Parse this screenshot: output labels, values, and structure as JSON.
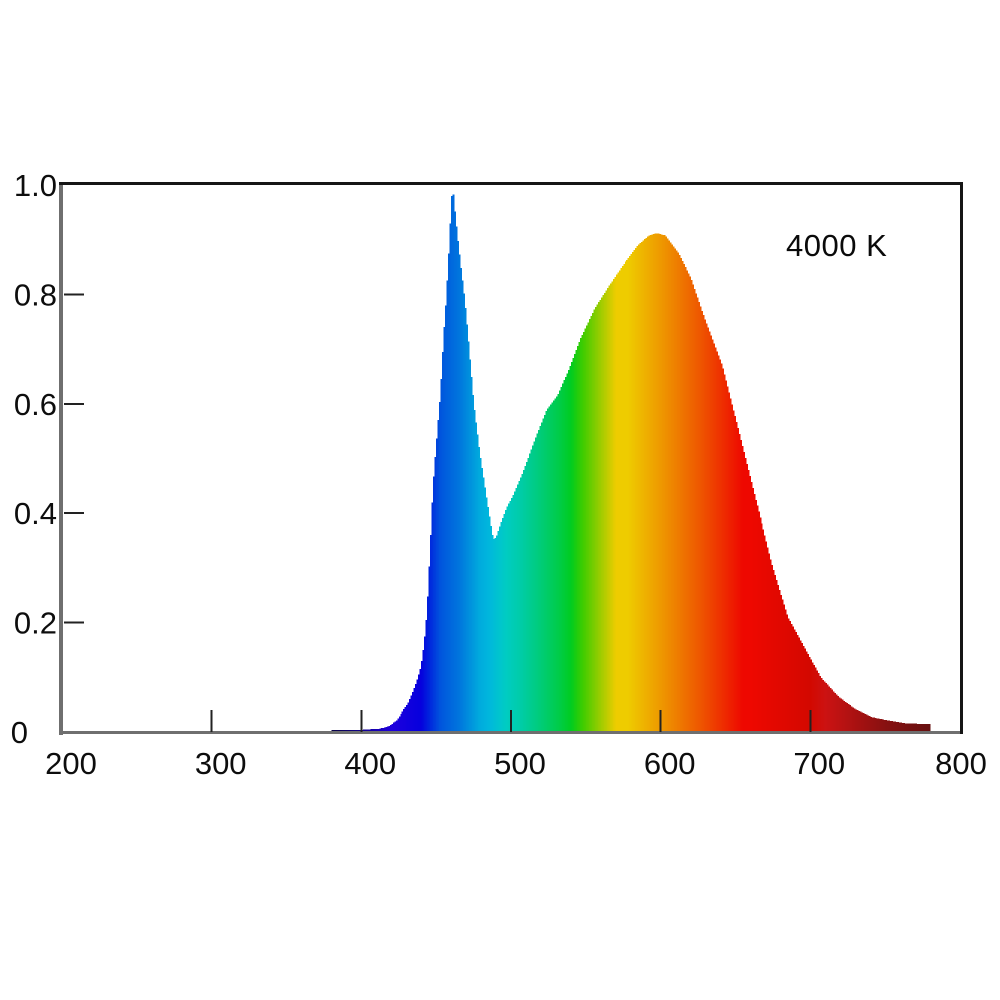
{
  "chart_data": {
    "type": "area",
    "title": "",
    "xlabel": "",
    "ylabel": "",
    "annotation": "4000 K",
    "xlim": [
      200,
      800
    ],
    "ylim": [
      0,
      1.0
    ],
    "grid": false,
    "legend": "none",
    "x_tick_labels": [
      "200",
      "300",
      "400",
      "500",
      "600",
      "700",
      "800"
    ],
    "x_tick_values": [
      200,
      300,
      400,
      500,
      600,
      700,
      800
    ],
    "x_tick_marks": [
      300,
      400,
      500,
      600,
      700
    ],
    "y_tick_labels": [
      "0",
      "0.2",
      "0.4",
      "0.6",
      "0.8",
      "1.0"
    ],
    "y_tick_values": [
      0,
      0.2,
      0.4,
      0.6,
      0.8,
      1.0
    ],
    "y_tick_marks": [
      0.2,
      0.4,
      0.6,
      0.8
    ],
    "features": {
      "blue_led_peak": {
        "wavelength_nm": 461,
        "relative_intensity": 1.0
      },
      "valley": {
        "wavelength_nm": 488,
        "relative_intensity": 0.35
      },
      "phosphor_peak": {
        "wavelength_nm": 597,
        "relative_intensity": 0.91
      },
      "spectrum_range_nm": [
        380,
        780
      ]
    },
    "series": [
      {
        "name": "4000 K LED spectral power distribution",
        "points": [
          [
            380,
            0.004
          ],
          [
            400,
            0.004
          ],
          [
            412,
            0.006
          ],
          [
            418,
            0.01
          ],
          [
            424,
            0.022
          ],
          [
            428,
            0.04
          ],
          [
            431,
            0.051
          ],
          [
            434,
            0.07
          ],
          [
            437,
            0.091
          ],
          [
            440,
            0.12
          ],
          [
            442,
            0.16
          ],
          [
            444,
            0.22
          ],
          [
            446,
            0.33
          ],
          [
            448,
            0.45
          ],
          [
            450,
            0.52
          ],
          [
            453,
            0.62
          ],
          [
            455,
            0.72
          ],
          [
            457,
            0.8
          ],
          [
            459,
            0.9
          ],
          [
            460,
            0.96
          ],
          [
            461,
            1.0
          ],
          [
            462,
            0.965
          ],
          [
            464,
            0.91
          ],
          [
            466,
            0.86
          ],
          [
            469,
            0.79
          ],
          [
            471,
            0.73
          ],
          [
            475,
            0.6
          ],
          [
            479,
            0.51
          ],
          [
            484,
            0.42
          ],
          [
            486,
            0.385
          ],
          [
            488,
            0.352
          ],
          [
            490,
            0.355
          ],
          [
            493,
            0.38
          ],
          [
            497,
            0.41
          ],
          [
            501,
            0.43
          ],
          [
            508,
            0.475
          ],
          [
            516,
            0.535
          ],
          [
            524,
            0.59
          ],
          [
            531,
            0.615
          ],
          [
            539,
            0.665
          ],
          [
            546,
            0.717
          ],
          [
            556,
            0.775
          ],
          [
            566,
            0.818
          ],
          [
            576,
            0.858
          ],
          [
            585,
            0.89
          ],
          [
            592,
            0.907
          ],
          [
            597,
            0.912
          ],
          [
            603,
            0.908
          ],
          [
            612,
            0.875
          ],
          [
            620,
            0.83
          ],
          [
            630,
            0.75
          ],
          [
            641,
            0.67
          ],
          [
            652,
            0.55
          ],
          [
            663,
            0.43
          ],
          [
            674,
            0.31
          ],
          [
            685,
            0.21
          ],
          [
            697,
            0.15
          ],
          [
            707,
            0.1
          ],
          [
            719,
            0.064
          ],
          [
            730,
            0.042
          ],
          [
            741,
            0.027
          ],
          [
            752,
            0.021
          ],
          [
            763,
            0.016
          ],
          [
            772,
            0.015
          ],
          [
            780,
            0.015
          ]
        ]
      }
    ],
    "fill_style": "vertical bars colored by wavelength (visible spectrum)",
    "spectral_color_map": {
      "r": [
        [
          380,
          25
        ],
        [
          420,
          30
        ],
        [
          445,
          0
        ],
        [
          540,
          0
        ],
        [
          570,
          238
        ],
        [
          660,
          238
        ],
        [
          710,
          204
        ],
        [
          750,
          136
        ],
        [
          780,
          102
        ]
      ],
      "g": [
        [
          380,
          0
        ],
        [
          440,
          0
        ],
        [
          453,
          85
        ],
        [
          466,
          119
        ],
        [
          479,
          170
        ],
        [
          493,
          198
        ],
        [
          497,
          204
        ],
        [
          578,
          204
        ],
        [
          600,
          153
        ],
        [
          627,
          85
        ],
        [
          655,
          8
        ],
        [
          700,
          8
        ],
        [
          710,
          18
        ],
        [
          780,
          16
        ]
      ],
      "b": [
        [
          380,
          221
        ],
        [
          485,
          221
        ],
        [
          493,
          204
        ],
        [
          506,
          169
        ],
        [
          520,
          119
        ],
        [
          533,
          68
        ],
        [
          543,
          17
        ],
        [
          548,
          0
        ],
        [
          700,
          0
        ],
        [
          710,
          18
        ],
        [
          780,
          16
        ]
      ],
      "uv_fade_start_nm": 420
    },
    "colors": {
      "background": "#ffffff",
      "axis_gray": "#6f6f6f",
      "border_black": "#151515",
      "tick_black": "#222222",
      "text": "#0d0d0d"
    }
  }
}
